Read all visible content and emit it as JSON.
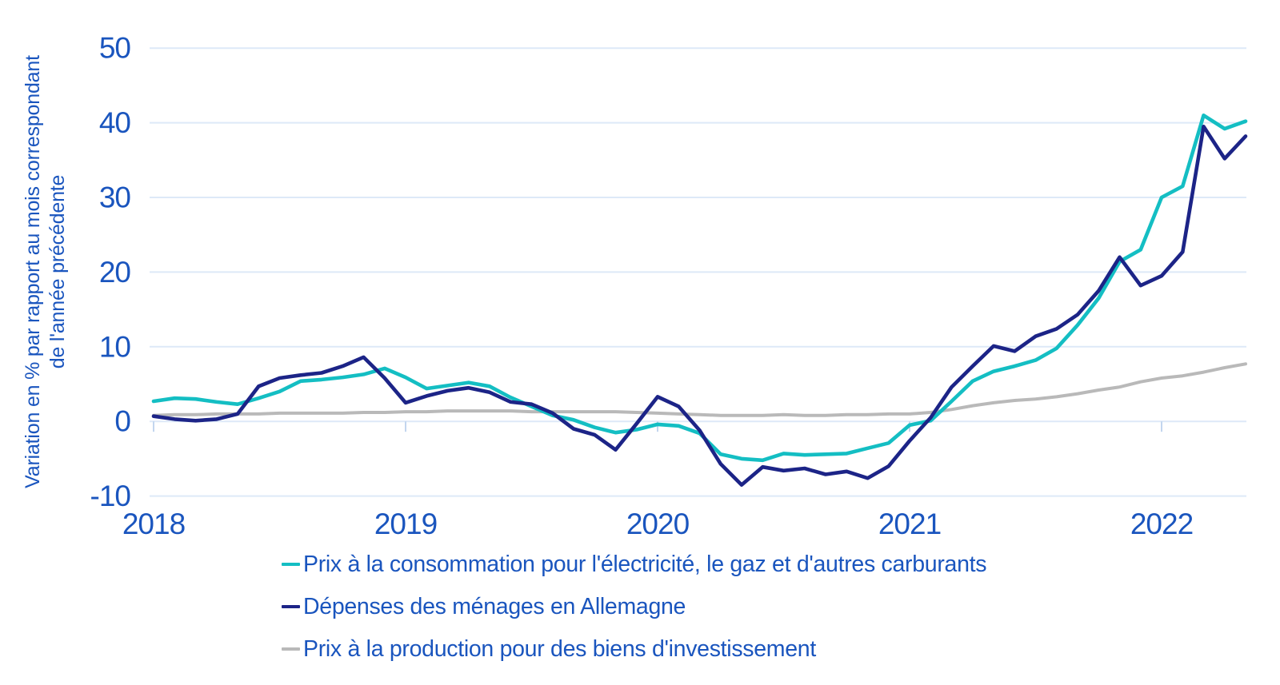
{
  "colors": {
    "axis_text": "#1a55be",
    "gridline": "#dde9f8",
    "year_tick": "#c3d6ef",
    "background": "#ffffff"
  },
  "chart_data": {
    "type": "line",
    "title": "",
    "ylabel_line1": "Variation en % par rapport au mois correspondant",
    "ylabel_line2": "de l'année précédente",
    "xlabel": "",
    "x_unit": "month",
    "x_range_start": "2018-01",
    "x_range_end": "2022-05",
    "x_tick_labels": [
      "2018",
      "2019",
      "2020",
      "2021",
      "2022"
    ],
    "y_ticks": [
      50,
      40,
      30,
      20,
      10,
      0,
      -10
    ],
    "ylim": [
      -13,
      53
    ],
    "grid": "horizontal-only",
    "legend_position": "bottom-left",
    "series": [
      {
        "name": "Prix à la consommation pour l'électricité, le gaz et d'autres carburants",
        "color": "#14bec3",
        "width": 4.6,
        "values": [
          2.7,
          3.1,
          3.0,
          2.6,
          2.3,
          3.1,
          4.0,
          5.4,
          5.6,
          5.9,
          6.3,
          7.1,
          5.9,
          4.4,
          4.8,
          5.2,
          4.7,
          3.2,
          2.0,
          0.8,
          0.2,
          -0.8,
          -1.5,
          -1.1,
          -0.4,
          -0.6,
          -1.6,
          -4.4,
          -5.0,
          -5.2,
          -4.3,
          -4.5,
          -4.4,
          -4.3,
          -3.6,
          -2.9,
          -0.5,
          0.1,
          2.7,
          5.4,
          6.7,
          7.4,
          8.2,
          9.8,
          12.9,
          16.5,
          21.4,
          23.0,
          30.0,
          31.5,
          41.0,
          39.2,
          40.2
        ]
      },
      {
        "name": "Dépenses des ménages en Allemagne",
        "color": "#1c2487",
        "width": 4.6,
        "values": [
          0.7,
          0.3,
          0.1,
          0.3,
          1.0,
          4.7,
          5.8,
          6.2,
          6.5,
          7.4,
          8.6,
          5.8,
          2.5,
          3.4,
          4.1,
          4.5,
          3.9,
          2.6,
          2.3,
          1.1,
          -1.0,
          -1.8,
          -3.8,
          -0.3,
          3.3,
          2.0,
          -1.2,
          -5.7,
          -8.5,
          -6.1,
          -6.6,
          -6.3,
          -7.1,
          -6.7,
          -7.6,
          -6.0,
          -2.6,
          0.5,
          4.6,
          7.4,
          10.1,
          9.4,
          11.4,
          12.4,
          14.3,
          17.5,
          22.0,
          18.2,
          19.5,
          22.7,
          39.5,
          35.2,
          38.2
        ]
      },
      {
        "name": "Prix à la production pour des biens d'investissement",
        "color": "#b9b9b9",
        "width": 4.0,
        "values": [
          0.8,
          0.9,
          0.9,
          1.0,
          1.0,
          1.0,
          1.1,
          1.1,
          1.1,
          1.1,
          1.2,
          1.2,
          1.3,
          1.3,
          1.4,
          1.4,
          1.4,
          1.4,
          1.3,
          1.3,
          1.3,
          1.3,
          1.3,
          1.2,
          1.1,
          1.0,
          0.9,
          0.8,
          0.8,
          0.8,
          0.9,
          0.8,
          0.8,
          0.9,
          0.9,
          1.0,
          1.0,
          1.2,
          1.6,
          2.1,
          2.5,
          2.8,
          3.0,
          3.3,
          3.7,
          4.2,
          4.6,
          5.3,
          5.8,
          6.1,
          6.6,
          7.2,
          7.7
        ]
      }
    ]
  }
}
